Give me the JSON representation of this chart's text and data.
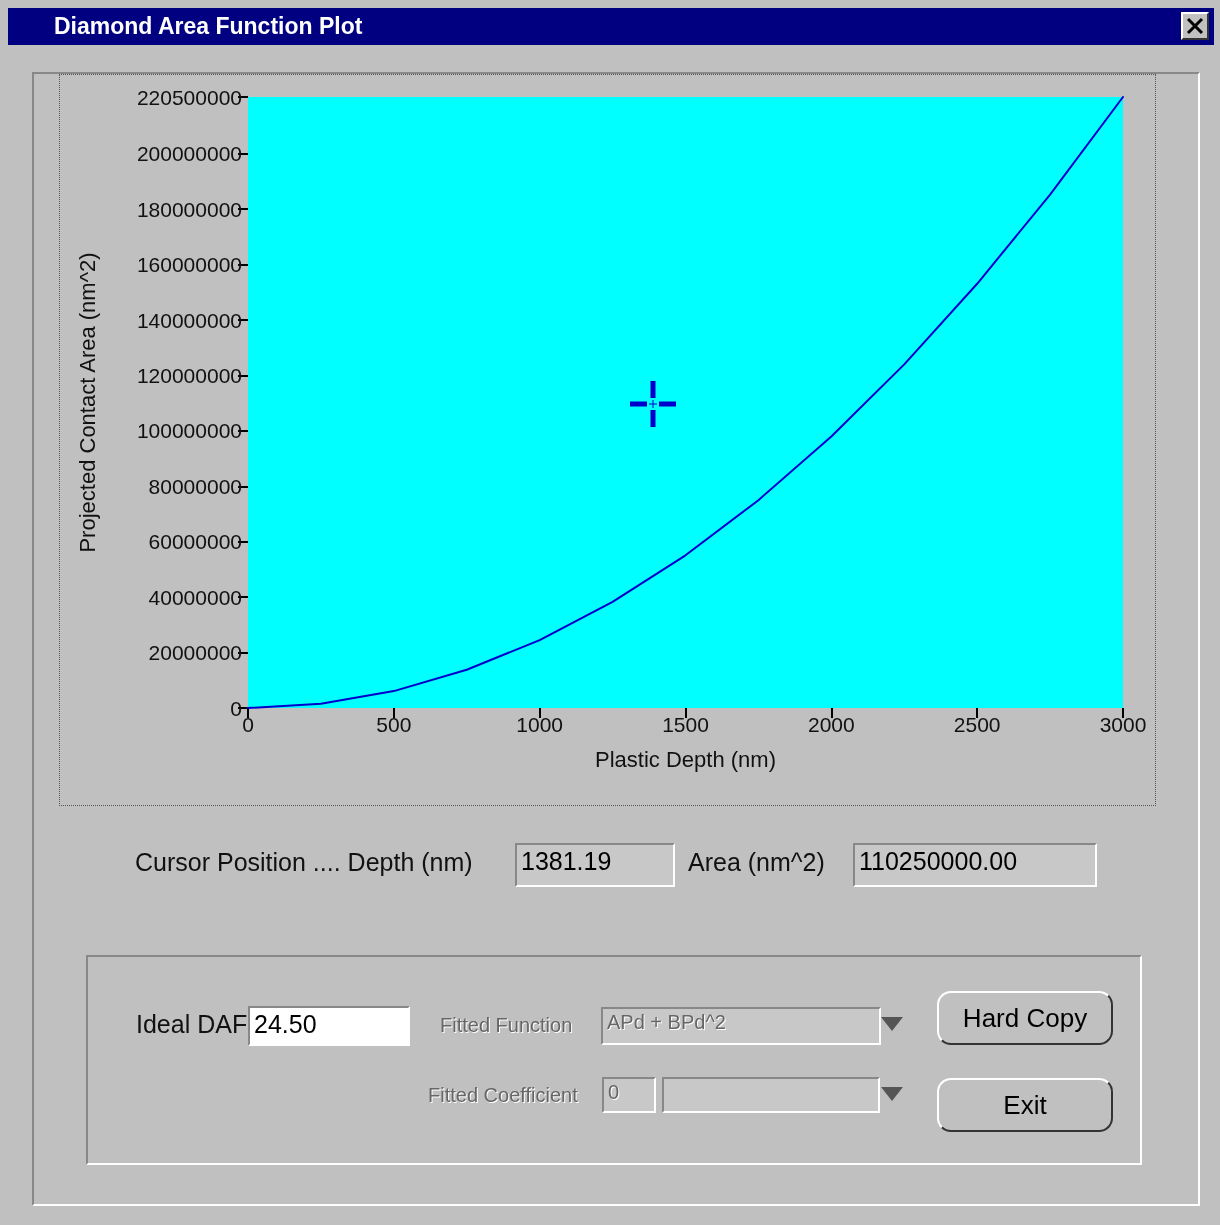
{
  "chart_data": {
    "type": "line",
    "title": "Diamond Area Function Plot",
    "xlabel": "Plastic Depth (nm)",
    "ylabel": "Projected Contact Area (nm^2)",
    "x": [
      0,
      250,
      500,
      750,
      1000,
      1250,
      1500,
      1750,
      2000,
      2250,
      2500,
      2750,
      3000
    ],
    "series": [
      {
        "color": "#0000cc",
        "values": [
          0,
          1500000,
          6100000,
          13800000,
          24500000,
          38300000,
          55100000,
          75000000,
          98000000,
          124000000,
          153100000,
          185300000,
          220500000
        ]
      }
    ],
    "xlim": [
      0,
      3000
    ],
    "xticks": [
      0,
      500,
      1000,
      1500,
      2000,
      2500,
      3000
    ],
    "ylim": [
      0,
      220500000
    ],
    "yticks": [
      0,
      20000000,
      40000000,
      60000000,
      80000000,
      100000000,
      120000000,
      140000000,
      160000000,
      180000000,
      200000000,
      220500000
    ],
    "grid": false,
    "marker": "none",
    "line_style": "solid",
    "annotations": [
      "Cursor Position .... Depth (nm)",
      "1381.19",
      "Area (nm^2)",
      "110250000.00",
      "Ideal DAF",
      "24.50",
      "Fitted Function",
      "APd + BPd^2",
      "Fitted Coefficient",
      "0",
      "Hard Copy",
      "Exit"
    ]
  }
}
